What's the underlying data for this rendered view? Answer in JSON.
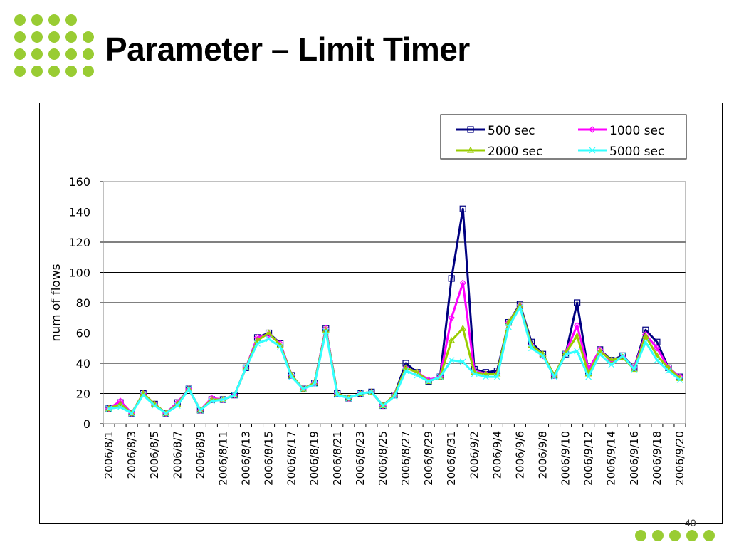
{
  "slide": {
    "title": "Parameter – Limit Timer",
    "page_number": "40",
    "accent_color": "#99cc33"
  },
  "chart_data": {
    "type": "line",
    "title": "",
    "xlabel": "",
    "ylabel": "num of flows",
    "ylim": [
      0,
      160
    ],
    "yticks": [
      0,
      20,
      40,
      60,
      80,
      100,
      120,
      140,
      160
    ],
    "grid": "horizontal",
    "legend_position": "top-right",
    "x": [
      "2006/8/1",
      "2006/8/2",
      "2006/8/3",
      "2006/8/4",
      "2006/8/5",
      "2006/8/6",
      "2006/8/7",
      "2006/8/8",
      "2006/8/9",
      "2006/8/10",
      "2006/8/11",
      "2006/8/12",
      "2006/8/13",
      "2006/8/14",
      "2006/8/15",
      "2006/8/16",
      "2006/8/17",
      "2006/8/18",
      "2006/8/19",
      "2006/8/20",
      "2006/8/21",
      "2006/8/22",
      "2006/8/23",
      "2006/8/24",
      "2006/8/25",
      "2006/8/26",
      "2006/8/27",
      "2006/8/28",
      "2006/8/29",
      "2006/8/30",
      "2006/8/31",
      "2006/9/1",
      "2006/9/2",
      "2006/9/3",
      "2006/9/4",
      "2006/9/5",
      "2006/9/6",
      "2006/9/7",
      "2006/9/8",
      "2006/9/9",
      "2006/9/10",
      "2006/9/11",
      "2006/9/12",
      "2006/9/13",
      "2006/9/14",
      "2006/9/15",
      "2006/9/16",
      "2006/9/17",
      "2006/9/18",
      "2006/9/19",
      "2006/9/20"
    ],
    "x_tick_labels": [
      "2006/8/1",
      "2006/8/3",
      "2006/8/5",
      "2006/8/7",
      "2006/8/9",
      "2006/8/11",
      "2006/8/13",
      "2006/8/15",
      "2006/8/17",
      "2006/8/19",
      "2006/8/21",
      "2006/8/23",
      "2006/8/25",
      "2006/8/27",
      "2006/8/29",
      "2006/8/31",
      "2006/9/2",
      "2006/9/4",
      "2006/9/6",
      "2006/9/8",
      "2006/9/10",
      "2006/9/12",
      "2006/9/14",
      "2006/9/16",
      "2006/9/18",
      "2006/9/20"
    ],
    "series": [
      {
        "name": "500 sec",
        "color": "#000080",
        "marker": "square",
        "values": [
          10,
          14,
          7,
          20,
          13,
          7,
          14,
          23,
          9,
          16,
          16,
          19,
          37,
          57,
          60,
          53,
          32,
          23,
          27,
          63,
          20,
          17,
          20,
          21,
          12,
          19,
          40,
          34,
          28,
          31,
          96,
          142,
          36,
          34,
          35,
          67,
          79,
          54,
          46,
          32,
          46,
          80,
          34,
          49,
          42,
          45,
          37,
          62,
          54,
          37,
          31
        ]
      },
      {
        "name": "1000 sec",
        "color": "#ff00ff",
        "marker": "diamond",
        "values": [
          10,
          15,
          7,
          20,
          13,
          7,
          14,
          23,
          9,
          17,
          16,
          19,
          37,
          57,
          59,
          53,
          32,
          23,
          27,
          63,
          20,
          17,
          20,
          21,
          12,
          19,
          37,
          34,
          29,
          31,
          70,
          93,
          35,
          33,
          33,
          67,
          78,
          52,
          45,
          32,
          47,
          65,
          36,
          49,
          41,
          44,
          37,
          59,
          50,
          37,
          31
        ]
      },
      {
        "name": "2000 sec",
        "color": "#99cc00",
        "marker": "triangle",
        "values": [
          10,
          13,
          7,
          20,
          13,
          7,
          13,
          23,
          9,
          16,
          16,
          19,
          37,
          55,
          60,
          52,
          32,
          23,
          27,
          62,
          20,
          17,
          20,
          21,
          12,
          19,
          37,
          34,
          28,
          31,
          55,
          63,
          34,
          33,
          33,
          67,
          78,
          52,
          46,
          32,
          47,
          58,
          33,
          48,
          42,
          44,
          36,
          58,
          45,
          37,
          30
        ]
      },
      {
        "name": "5000 sec",
        "color": "#33ffff",
        "marker": "x",
        "values": [
          10,
          11,
          7,
          19,
          12,
          7,
          12,
          23,
          9,
          15,
          16,
          19,
          37,
          53,
          56,
          51,
          31,
          23,
          26,
          61,
          19,
          17,
          20,
          21,
          12,
          18,
          35,
          32,
          28,
          31,
          42,
          41,
          33,
          31,
          31,
          64,
          77,
          50,
          45,
          31,
          46,
          48,
          31,
          46,
          39,
          45,
          36,
          54,
          42,
          35,
          29
        ]
      }
    ]
  }
}
